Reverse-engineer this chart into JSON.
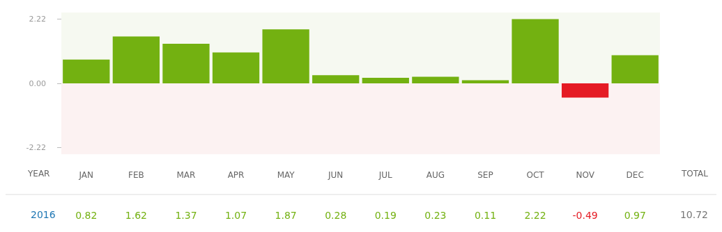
{
  "chart_data": {
    "type": "bar",
    "categories": [
      "JAN",
      "FEB",
      "MAR",
      "APR",
      "MAY",
      "JUN",
      "JUL",
      "AUG",
      "SEP",
      "OCT",
      "NOV",
      "DEC"
    ],
    "series": [
      {
        "name": "2016",
        "colors": [
          "#73b111",
          "#73b111",
          "#73b111",
          "#73b111",
          "#73b111",
          "#73b111",
          "#73b111",
          "#73b111",
          "#73b111",
          "#73b111",
          "#e51b24",
          "#73b111"
        ],
        "values": [
          0.82,
          1.62,
          1.37,
          1.07,
          1.87,
          0.28,
          0.19,
          0.23,
          0.11,
          2.22,
          -0.49,
          0.97
        ]
      }
    ],
    "ylim": [
      -2.45,
      2.45
    ],
    "yticks": [
      2.22,
      {
        "value": 0,
        "label": "0.00"
      },
      -2.22
    ],
    "bands": [
      {
        "axis": "y",
        "from": 0,
        "to": 2.45,
        "color": "#f6f9f1"
      },
      {
        "axis": "y",
        "from": -2.45,
        "to": 0,
        "color": "#fcf2f2"
      }
    ],
    "data_labels": true,
    "legend": false,
    "annotations": [
      "YEAR",
      "TOTAL",
      "10.72"
    ]
  }
}
